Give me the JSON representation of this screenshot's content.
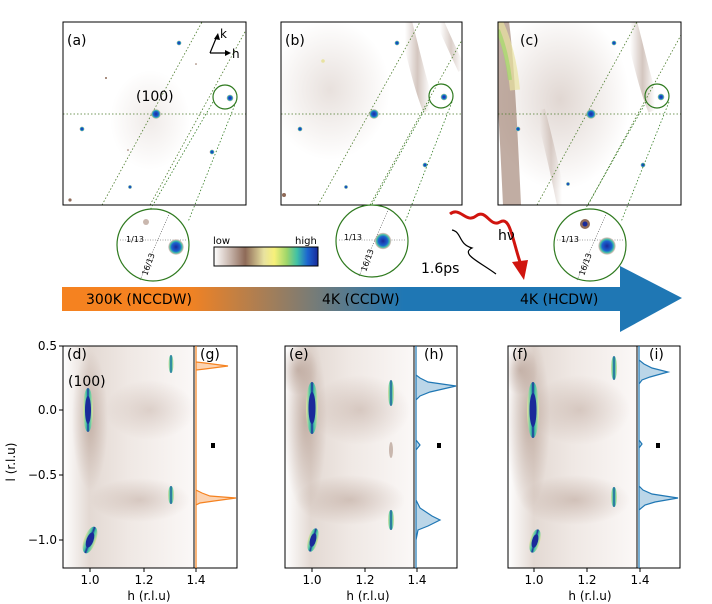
{
  "panels_top": [
    {
      "label": "(a)",
      "peak_label": "(100)",
      "has_axes_arrows": true
    },
    {
      "label": "(b)"
    },
    {
      "label": "(c)"
    }
  ],
  "axes_arrows": {
    "k": "k",
    "h": "h"
  },
  "zoom_labels": {
    "a": "1/13",
    "b": "16/13"
  },
  "colorbar": {
    "low": "low",
    "high": "high",
    "colors": [
      "#ffffff",
      "#c9b7ae",
      "#8e6a58",
      "#e8e2a0",
      "#f7f07a",
      "#9fd66a",
      "#3fc0a6",
      "#1c64d0",
      "#1a2a9a"
    ]
  },
  "pump": {
    "photon": "hν",
    "delay": "1.6ps"
  },
  "arrow": {
    "gradient": [
      "#f58220",
      "#1f77b4"
    ],
    "labels": [
      "300K (NCCDW)",
      "4K (CCDW)",
      "4K (HCDW)"
    ]
  },
  "bottom": {
    "panels": [
      {
        "label": "(d)",
        "line_label": "(g)",
        "peak_label": "(100)",
        "line_color": "#f58220"
      },
      {
        "label": "(e)",
        "line_label": "(h)",
        "line_color": "#1f77b4"
      },
      {
        "label": "(f)",
        "line_label": "(i)",
        "line_color": "#1f77b4"
      }
    ],
    "xlabel": "h (r.l.u)",
    "ylabel": "l (r.l.u)",
    "xticks": [
      "1.0",
      "1.2",
      "1.4"
    ],
    "yticks": [
      "0.5",
      "0.0",
      "−0.5",
      "−1.0"
    ]
  }
}
